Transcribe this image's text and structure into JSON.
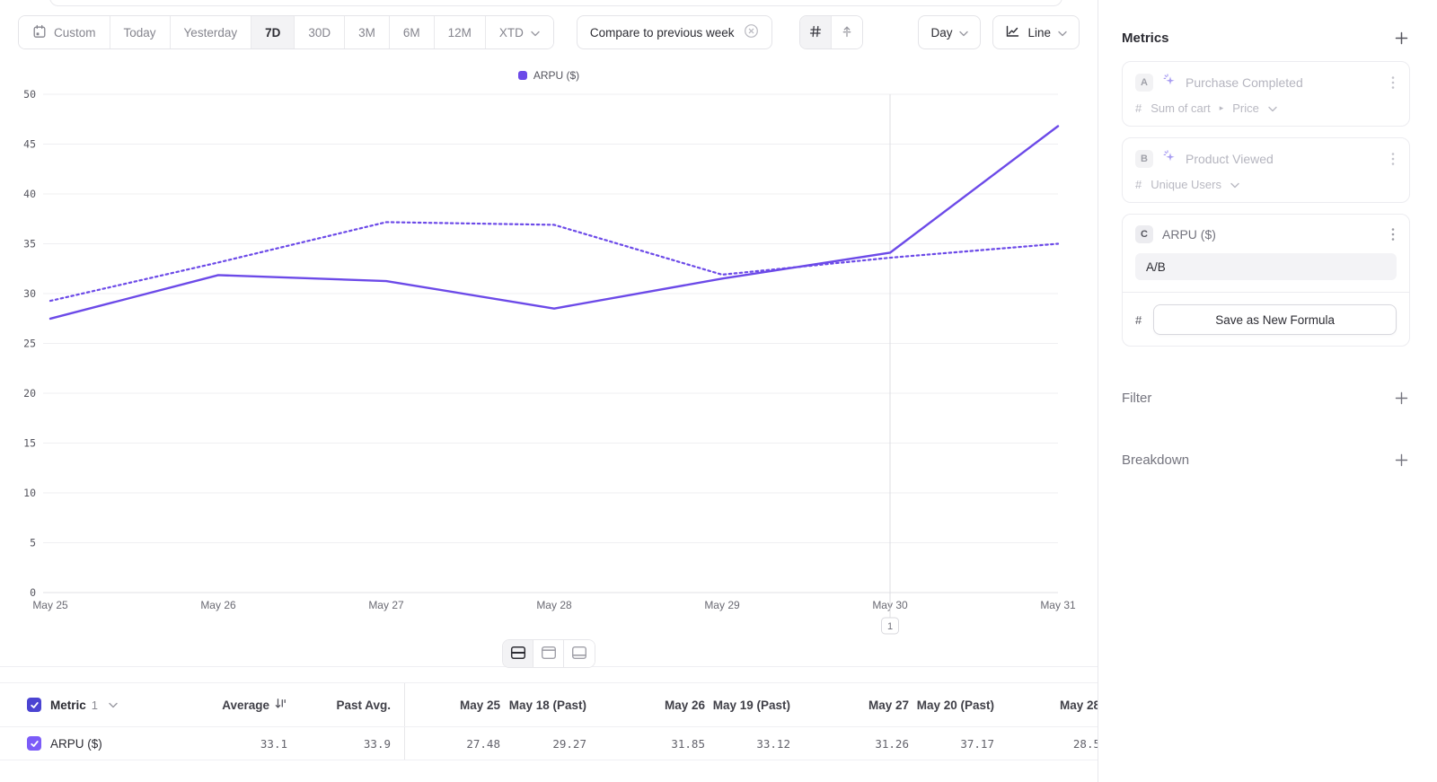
{
  "toolbar": {
    "date_ranges": [
      {
        "label": "Custom",
        "icon": "calendar-icon"
      },
      {
        "label": "Today"
      },
      {
        "label": "Yesterday"
      },
      {
        "label": "7D",
        "selected": true
      },
      {
        "label": "30D"
      },
      {
        "label": "3M"
      },
      {
        "label": "6M"
      },
      {
        "label": "12M"
      },
      {
        "label": "XTD",
        "dropdown": true
      }
    ],
    "compare_chip": "Compare to previous week",
    "granularity": "Day",
    "chart_type": "Line"
  },
  "chart_data": {
    "type": "line",
    "legend_label": "ARPU ($)",
    "categories": [
      "May 25",
      "May 26",
      "May 27",
      "May 28",
      "May 29",
      "May 30",
      "May 31"
    ],
    "series": [
      {
        "name": "ARPU ($)",
        "line_style": "solid",
        "values": [
          27.48,
          31.85,
          31.26,
          28.5,
          31.5,
          34.1,
          46.8
        ]
      },
      {
        "name": "ARPU ($) previous week",
        "line_style": "dotted",
        "values": [
          29.27,
          33.12,
          37.17,
          36.9,
          31.9,
          33.6,
          35.0
        ]
      }
    ],
    "ylim": [
      0,
      50
    ],
    "ytick_step": 5,
    "line_color": "#6C4AE8",
    "grid": true,
    "legend_position": "top",
    "annotation": {
      "category": "May 30",
      "label": "1"
    }
  },
  "view_toggle": {
    "options": [
      "split-view",
      "top-panel-view",
      "bottom-panel-view"
    ],
    "selected": "split-view"
  },
  "table": {
    "metric_header": {
      "label": "Metric",
      "count": "1"
    },
    "columns": [
      "Average",
      "Past Avg.",
      "May 25",
      "May 18 (Past)",
      "May 26",
      "May 19 (Past)",
      "May 27",
      "May 20 (Past)",
      "May 28"
    ],
    "rows": [
      {
        "label": "ARPU ($)",
        "checked": true,
        "values": [
          "33.1",
          "33.9",
          "27.48",
          "29.27",
          "31.85",
          "33.12",
          "31.26",
          "37.17",
          "28.5"
        ]
      }
    ]
  },
  "sidebar": {
    "metrics_title": "Metrics",
    "metric_cards": [
      {
        "badge": "A",
        "title": "Purchase Completed",
        "measure_prefix": "#",
        "measure": "Sum of cart",
        "measure_property": "Price",
        "dimmed": true
      },
      {
        "badge": "B",
        "title": "Product Viewed",
        "measure_prefix": "#",
        "measure": "Unique Users",
        "dimmed": true
      }
    ],
    "formula_card": {
      "badge": "C",
      "title": "ARPU ($)",
      "formula": "A/B",
      "measure_prefix": "#",
      "save_button": "Save as New Formula"
    },
    "filter_title": "Filter",
    "breakdown_title": "Breakdown"
  },
  "icons": {
    "date_custom": "calendar-icon",
    "compare_remove": "x-circle-icon",
    "toolbar_grid": "grid-icon",
    "toolbar_annotation": "flag-icon",
    "chart_type": "line-chart-icon",
    "sort": "sort-descending-icon",
    "metric_event": "spark-icon",
    "card_menu": "kebab-icon",
    "add": "plus-icon"
  },
  "colors": {
    "accent": "#6C4AE8",
    "checkbox_header": "#4B44D2",
    "checkbox_row": "#7C5CF8"
  }
}
